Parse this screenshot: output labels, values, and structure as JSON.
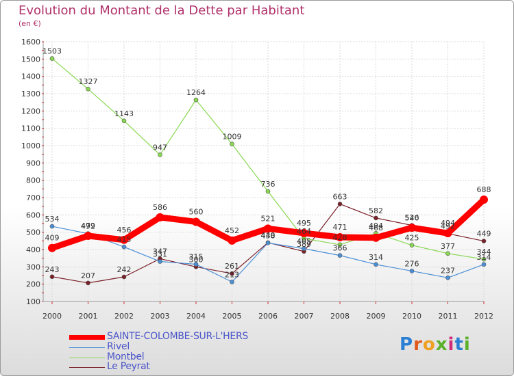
{
  "title": "Evolution du Montant de la Dette par Habitant",
  "unit": "(en €)",
  "logo": {
    "text": "Proxiti",
    "colors": [
      "#2a7fd4",
      "#e05a1c",
      "#f0a020",
      "#5ab02a",
      "#d02a7a",
      "#2a7fd4",
      "#5ab02a"
    ]
  },
  "chart_data": {
    "type": "line",
    "title": "Evolution du Montant de la Dette par Habitant",
    "ylabel": "(en €)",
    "xlabel": "",
    "ylim": [
      100,
      1600
    ],
    "yticks": [
      100,
      200,
      300,
      400,
      500,
      600,
      700,
      800,
      900,
      1000,
      1100,
      1200,
      1300,
      1400,
      1500,
      1600
    ],
    "categories": [
      "2000",
      "2001",
      "2002",
      "2003",
      "2004",
      "2005",
      "2006",
      "2007",
      "2008",
      "2009",
      "2010",
      "2011",
      "2012"
    ],
    "series": [
      {
        "name": "SAINTE-COLOMBE-SUR-L'HERS",
        "color": "#ff0000",
        "values": [
          409,
          479,
          456,
          586,
          560,
          452,
          521,
          495,
          471,
          468,
          526,
          494,
          688
        ]
      },
      {
        "name": "Rivel",
        "color": "#4a8fd6",
        "values": [
          534,
          492,
          415,
          331,
          315,
          213,
          438,
          405,
          366,
          314,
          276,
          237,
          314
        ]
      },
      {
        "name": "Montbel",
        "color": "#88d850",
        "values": [
          1503,
          1327,
          1143,
          947,
          1264,
          1009,
          736,
          464,
          428,
          494,
          425,
          377,
          344
        ]
      },
      {
        "name": "Le Peyrat",
        "color": "#7a1f28",
        "values": [
          243,
          207,
          242,
          347,
          300,
          261,
          440,
          389,
          663,
          582,
          540,
          492,
          449
        ]
      }
    ]
  }
}
